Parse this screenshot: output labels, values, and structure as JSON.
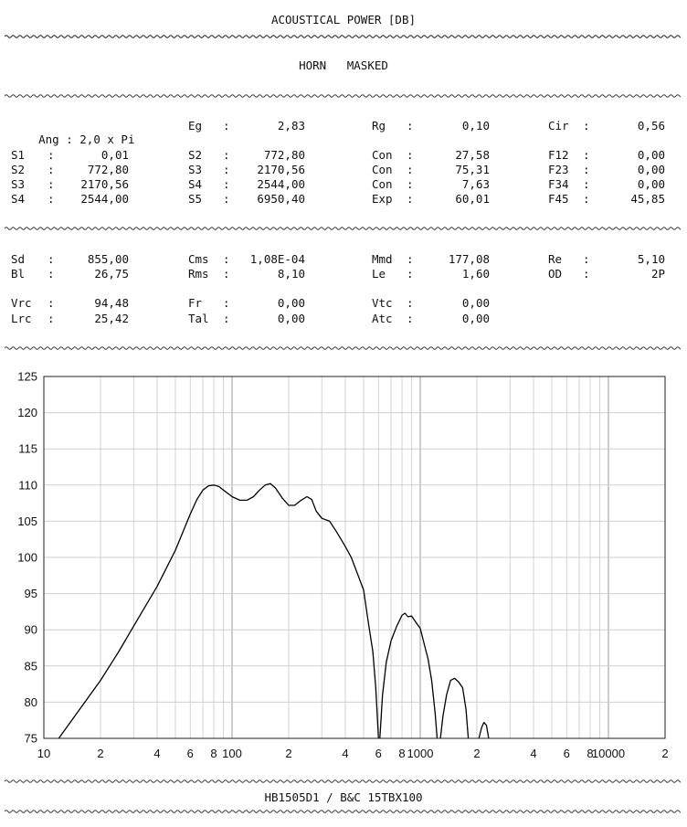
{
  "header": {
    "title": "ACOUSTICAL POWER [DB]",
    "subtitle": "HORN   MASKED"
  },
  "footer": {
    "label": "HB1505D1 / B&C 15TBX100"
  },
  "params": {
    "ang": {
      "label": "Ang",
      "value": "2,0 x Pi"
    },
    "eg": {
      "label": "Eg",
      "value": "2,83"
    },
    "rg": {
      "label": "Rg",
      "value": "0,10"
    },
    "cir": {
      "label": "Cir",
      "value": "0,56"
    },
    "s1": {
      "label": "S1",
      "value": "0,01"
    },
    "s2a": {
      "label": "S2",
      "value": "772,80"
    },
    "con1": {
      "label": "Con",
      "value": "27,58"
    },
    "f12": {
      "label": "F12",
      "value": "0,00"
    },
    "s2b": {
      "label": "S2",
      "value": "772,80"
    },
    "s3a": {
      "label": "S3",
      "value": "2170,56"
    },
    "con2": {
      "label": "Con",
      "value": "75,31"
    },
    "f23": {
      "label": "F23",
      "value": "0,00"
    },
    "s3b": {
      "label": "S3",
      "value": "2170,56"
    },
    "s4a": {
      "label": "S4",
      "value": "2544,00"
    },
    "con3": {
      "label": "Con",
      "value": "7,63"
    },
    "f34": {
      "label": "F34",
      "value": "0,00"
    },
    "s4b": {
      "label": "S4",
      "value": "2544,00"
    },
    "s5": {
      "label": "S5",
      "value": "6950,40"
    },
    "exp": {
      "label": "Exp",
      "value": "60,01"
    },
    "f45": {
      "label": "F45",
      "value": "45,85"
    },
    "sd": {
      "label": "Sd",
      "value": "855,00"
    },
    "cms": {
      "label": "Cms",
      "value": "1,08E-04"
    },
    "mmd": {
      "label": "Mmd",
      "value": "177,08"
    },
    "re": {
      "label": "Re",
      "value": "5,10"
    },
    "bl": {
      "label": "Bl",
      "value": "26,75"
    },
    "rms": {
      "label": "Rms",
      "value": "8,10"
    },
    "le": {
      "label": "Le",
      "value": "1,60"
    },
    "od": {
      "label": "OD",
      "value": "2P"
    },
    "vrc": {
      "label": "Vrc",
      "value": "94,48"
    },
    "fr": {
      "label": "Fr",
      "value": "0,00"
    },
    "vtc": {
      "label": "Vtc",
      "value": "0,00"
    },
    "lrc": {
      "label": "Lrc",
      "value": "25,42"
    },
    "tal": {
      "label": "Tal",
      "value": "0,00"
    },
    "atc": {
      "label": "Atc",
      "value": "0,00"
    }
  },
  "chart_data": {
    "type": "line",
    "xscale": "log",
    "xlim": [
      10,
      20000
    ],
    "ylim": [
      75,
      125
    ],
    "grid": true,
    "yticks": [
      75,
      80,
      85,
      90,
      95,
      100,
      105,
      110,
      115,
      120,
      125
    ],
    "xtick_labels": [
      {
        "x": 10,
        "label": "10"
      },
      {
        "x": 20,
        "label": "2"
      },
      {
        "x": 40,
        "label": "4"
      },
      {
        "x": 60,
        "label": "6"
      },
      {
        "x": 80,
        "label": "8"
      },
      {
        "x": 100,
        "label": "100"
      },
      {
        "x": 200,
        "label": "2"
      },
      {
        "x": 400,
        "label": "4"
      },
      {
        "x": 600,
        "label": "6"
      },
      {
        "x": 800,
        "label": "8"
      },
      {
        "x": 1000,
        "label": "1000"
      },
      {
        "x": 2000,
        "label": "2"
      },
      {
        "x": 4000,
        "label": "4"
      },
      {
        "x": 6000,
        "label": "6"
      },
      {
        "x": 8000,
        "label": "8"
      },
      {
        "x": 10000,
        "label": "10000"
      },
      {
        "x": 20000,
        "label": "2"
      }
    ],
    "series": [
      {
        "color": "#000000",
        "segments": [
          [
            [
              12,
              75
            ],
            [
              15,
              78.5
            ],
            [
              20,
              83
            ],
            [
              25,
              87
            ],
            [
              30,
              90.5
            ],
            [
              40,
              96
            ],
            [
              50,
              101
            ],
            [
              60,
              106
            ],
            [
              65,
              108
            ],
            [
              70,
              109.3
            ],
            [
              75,
              109.9
            ],
            [
              80,
              110
            ],
            [
              85,
              109.8
            ],
            [
              90,
              109.3
            ],
            [
              100,
              108.4
            ],
            [
              110,
              107.9
            ],
            [
              120,
              107.9
            ],
            [
              130,
              108.4
            ],
            [
              140,
              109.3
            ],
            [
              150,
              110
            ],
            [
              160,
              110.2
            ],
            [
              170,
              109.6
            ],
            [
              185,
              108.2
            ],
            [
              200,
              107.2
            ],
            [
              215,
              107.2
            ],
            [
              230,
              107.8
            ],
            [
              250,
              108.4
            ],
            [
              265,
              108
            ],
            [
              280,
              106.4
            ],
            [
              300,
              105.4
            ],
            [
              330,
              105
            ],
            [
              360,
              103.5
            ],
            [
              400,
              101.5
            ],
            [
              430,
              100
            ],
            [
              460,
              98
            ],
            [
              500,
              95.5
            ],
            [
              530,
              91
            ],
            [
              560,
              87
            ],
            [
              580,
              82
            ],
            [
              600,
              75
            ]
          ],
          [
            [
              610,
              75
            ],
            [
              630,
              81
            ],
            [
              660,
              85.5
            ],
            [
              700,
              88.5
            ],
            [
              750,
              90.5
            ],
            [
              800,
              92
            ],
            [
              830,
              92.3
            ],
            [
              860,
              91.8
            ],
            [
              900,
              91.9
            ],
            [
              950,
              91
            ],
            [
              1000,
              90.2
            ],
            [
              1050,
              88
            ],
            [
              1100,
              86
            ],
            [
              1150,
              83
            ],
            [
              1200,
              78.5
            ],
            [
              1230,
              75
            ]
          ],
          [
            [
              1280,
              75
            ],
            [
              1320,
              78
            ],
            [
              1380,
              81
            ],
            [
              1450,
              83
            ],
            [
              1520,
              83.3
            ],
            [
              1600,
              82.8
            ],
            [
              1680,
              82
            ],
            [
              1750,
              79
            ],
            [
              1800,
              75
            ]
          ],
          [
            [
              2050,
              75
            ],
            [
              2120,
              76.5
            ],
            [
              2180,
              77.2
            ],
            [
              2250,
              76.8
            ],
            [
              2310,
              75
            ]
          ]
        ]
      }
    ]
  }
}
